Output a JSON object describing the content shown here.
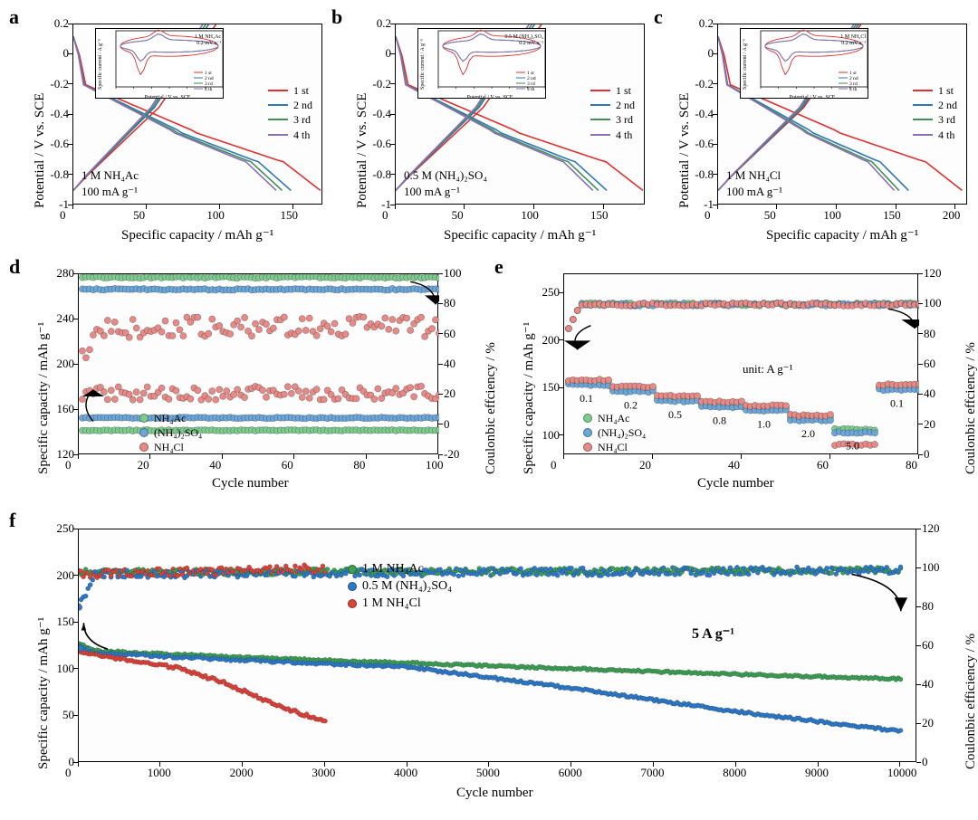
{
  "colors": {
    "c1": "#e2302e",
    "c2": "#2e78b6",
    "c3": "#418f59",
    "c4": "#8d6fb4",
    "green": "#7ecb8f",
    "blue": "#6ca6d9",
    "red": "#e58a86",
    "green_f": "#3e9e56",
    "blue_f": "#2e78c8",
    "red_f": "#d9433a",
    "axis": "#000000",
    "bg": "#ffffff"
  },
  "panel_letters": {
    "a": "a",
    "b": "b",
    "c": "c",
    "d": "d",
    "e": "e",
    "f": "f"
  },
  "abc_common": {
    "ylabel": "Potential / V vs. SCE",
    "xlabel": "Specific capacity / mAh g⁻¹",
    "legend": [
      "1 st",
      "2 nd",
      "3 rd",
      "4 th"
    ],
    "legend_colors_key": [
      "c1",
      "c2",
      "c3",
      "c4"
    ],
    "inset_ylabel": "Specific current / A g⁻¹",
    "inset_xlabel": "Potential / V vs. SCE",
    "rate_label": "100 mA g⁻¹"
  },
  "panel_a": {
    "electrolyte": "1 M NH₄Ac",
    "xlim": [
      0,
      170
    ],
    "xticks": [
      0,
      50,
      100,
      150
    ],
    "ylim": [
      -1.0,
      0.2
    ],
    "yticks": [
      -1.0,
      -0.8,
      -0.6,
      -0.4,
      -0.2,
      0.0,
      0.2
    ],
    "inset_title": "1 M NH₄Ac",
    "inset_rate": "0.2 mV s⁻¹",
    "inset_xlim": [
      -1.0,
      0.2
    ],
    "inset_xticks": [
      -1.0,
      -0.8,
      -0.6,
      -0.4,
      -0.2,
      0.0,
      0.2
    ],
    "inset_ylim": [
      -0.4,
      0.15
    ],
    "inset_yticks": [
      -0.4,
      -0.3,
      -0.2,
      -0.1,
      0.0,
      0.1
    ],
    "curves": {
      "charge_x_end": {
        "1": 97,
        "2": 92,
        "3": 90,
        "4": 88
      },
      "discharge_x_end": {
        "1": 168,
        "2": 148,
        "3": 142,
        "4": 138
      }
    }
  },
  "panel_b": {
    "electrolyte": "0.5 M (NH₄)₂SO₄",
    "xlim": [
      0,
      180
    ],
    "xticks": [
      0,
      50,
      100,
      150
    ],
    "ylim": [
      -1.0,
      0.2
    ],
    "yticks": [
      -1.0,
      -0.8,
      -0.6,
      -0.4,
      -0.2,
      0.0,
      0.2
    ],
    "inset_title": "0.5 M (NH₄)₂SO₄",
    "inset_rate": "0.2 mV s⁻¹",
    "inset_xlim": [
      -1.0,
      0.2
    ],
    "inset_xticks": [
      -1.0,
      -0.8,
      -0.6,
      -0.4,
      -0.2,
      0.0,
      0.2
    ],
    "inset_ylim": [
      -0.4,
      0.15
    ],
    "inset_yticks": [
      -0.4,
      -0.3,
      -0.2,
      -0.1,
      0.0,
      0.1
    ],
    "curves": {
      "charge_x_end": {
        "1": 105,
        "2": 100,
        "3": 98,
        "4": 96
      },
      "discharge_x_end": {
        "1": 178,
        "2": 152,
        "3": 146,
        "4": 142
      }
    }
  },
  "panel_c": {
    "electrolyte": "1 M NH₄Cl",
    "xlim": [
      0,
      210
    ],
    "xticks": [
      0,
      50,
      100,
      150,
      200
    ],
    "ylim": [
      -1.0,
      0.2
    ],
    "yticks": [
      -1.0,
      -0.8,
      -0.6,
      -0.4,
      -0.2,
      0.0,
      0.2
    ],
    "inset_title": "1 M NH₄Cl",
    "inset_rate": "0.2 mV s⁻¹",
    "inset_xlim": [
      -1.0,
      0.2
    ],
    "inset_xticks": [
      -1.0,
      -0.8,
      -0.6,
      -0.4,
      -0.2,
      0.0,
      0.2
    ],
    "inset_ylim": [
      -0.4,
      0.15
    ],
    "inset_yticks": [
      -0.4,
      -0.3,
      -0.2,
      -0.1,
      0.0,
      0.1
    ],
    "curves": {
      "charge_x_end": {
        "1": 120,
        "2": 118,
        "3": 116,
        "4": 114
      },
      "discharge_x_end": {
        "1": 205,
        "2": 160,
        "3": 152,
        "4": 148
      }
    }
  },
  "panel_d": {
    "xlabel": "Cycle number",
    "ylabel": "Specific capacity / mAh g⁻¹",
    "y2label": "Coulonbic effciency / %",
    "xlim": [
      0,
      100
    ],
    "xticks": [
      0,
      20,
      40,
      60,
      80,
      100
    ],
    "ylim": [
      120,
      280
    ],
    "yticks": [
      120,
      160,
      200,
      240,
      280
    ],
    "y2lim": [
      -20,
      100
    ],
    "y2ticks": [
      -20,
      0,
      20,
      40,
      60,
      80,
      100
    ],
    "legend": [
      {
        "label": "NH₄Ac",
        "color_key": "green"
      },
      {
        "label": "(NH₄)₂SO₄",
        "color_key": "blue"
      },
      {
        "label": "NH₄Cl",
        "color_key": "red"
      }
    ],
    "capacity": {
      "green": 142,
      "blue": 153,
      "red": 175
    },
    "ce": {
      "green": 98,
      "blue": 90,
      "red": 65
    },
    "red_cap_scatter": 12,
    "red_ce_scatter": 14
  },
  "panel_e": {
    "xlabel": "Cycle number",
    "ylabel": "Specific capacity / mAh g⁻¹",
    "y2label": "Coulonbic effciency / %",
    "xlim": [
      0,
      80
    ],
    "xticks": [
      0,
      20,
      40,
      60,
      80
    ],
    "ylim": [
      80,
      270
    ],
    "yticks": [
      100,
      150,
      200,
      250
    ],
    "y2lim": [
      0,
      120
    ],
    "y2ticks": [
      0,
      20,
      40,
      60,
      80,
      100,
      120
    ],
    "unit_label": "unit: A g⁻¹",
    "rates": [
      {
        "label": "0.1",
        "start": 0,
        "end": 10,
        "cap": 155
      },
      {
        "label": "0.2",
        "start": 10,
        "end": 20,
        "cap": 148
      },
      {
        "label": "0.5",
        "start": 20,
        "end": 30,
        "cap": 138
      },
      {
        "label": "0.8",
        "start": 30,
        "end": 40,
        "cap": 132
      },
      {
        "label": "1.0",
        "start": 40,
        "end": 50,
        "cap": 128
      },
      {
        "label": "2.0",
        "start": 50,
        "end": 60,
        "cap": 118
      },
      {
        "label": "5.0",
        "start": 60,
        "end": 70,
        "cap": 105
      },
      {
        "label": "0.1",
        "start": 70,
        "end": 80,
        "cap": 150
      }
    ],
    "legend": [
      {
        "label": "NH₄Ac",
        "color_key": "green"
      },
      {
        "label": "(NH₄)₂SO₄",
        "color_key": "blue"
      },
      {
        "label": "NH₄Cl",
        "color_key": "red"
      }
    ],
    "ce_base": 100,
    "ce_low_first": 78
  },
  "panel_f": {
    "xlabel": "Cycle number",
    "ylabel": "Specific capacity / mAh g⁻¹",
    "y2label": "Coulonbic efficiency / %",
    "rate_label": "5 A g⁻¹",
    "xlim": [
      0,
      10200
    ],
    "xticks": [
      0,
      1000,
      2000,
      3000,
      4000,
      5000,
      6000,
      7000,
      8000,
      9000,
      10000
    ],
    "ylim": [
      0,
      250
    ],
    "yticks": [
      0,
      50,
      100,
      150,
      200,
      250
    ],
    "y2lim": [
      0,
      120
    ],
    "y2ticks": [
      0,
      20,
      40,
      60,
      80,
      100,
      120
    ],
    "legend": [
      {
        "label": "1 M NH₄Ac",
        "color_key": "green_f"
      },
      {
        "label": "0.5 M (NH₄)₂SO₄",
        "color_key": "blue_f"
      },
      {
        "label": "1 M NH₄Cl",
        "color_key": "red_f"
      }
    ],
    "series": {
      "green_cap": [
        [
          0,
          128
        ],
        [
          200,
          120
        ],
        [
          2000,
          113
        ],
        [
          5000,
          104
        ],
        [
          8000,
          95
        ],
        [
          10000,
          90
        ]
      ],
      "blue_cap": [
        [
          0,
          125
        ],
        [
          200,
          118
        ],
        [
          2000,
          110
        ],
        [
          4000,
          103
        ],
        [
          6000,
          80
        ],
        [
          8000,
          55
        ],
        [
          10000,
          34
        ]
      ],
      "red_cap": [
        [
          0,
          118
        ],
        [
          500,
          112
        ],
        [
          1200,
          102
        ],
        [
          1800,
          85
        ],
        [
          2400,
          62
        ],
        [
          3000,
          44
        ]
      ],
      "ce_green": [
        [
          0,
          98
        ],
        [
          10000,
          99
        ]
      ],
      "ce_blue": [
        [
          0,
          80
        ],
        [
          200,
          97
        ],
        [
          10000,
          99
        ]
      ],
      "ce_red": [
        [
          0,
          97
        ],
        [
          3000,
          100
        ]
      ]
    },
    "first_cycle_markers": {
      "blue_ce_first": 80,
      "blue_ce_second": 59
    }
  }
}
